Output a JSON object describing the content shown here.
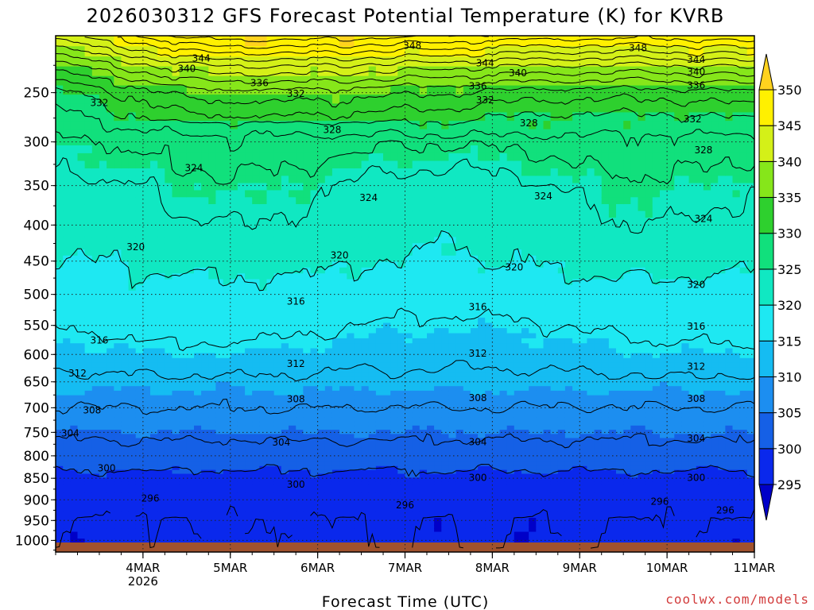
{
  "chart_data": {
    "type": "heatmap",
    "title": "2026030312 GFS Forecast Potential Temperature (K) for KVRB",
    "xlabel": "Forecast Time (UTC)",
    "ylabel": "",
    "credit": "coolwx.com/models",
    "x_ticks": [
      {
        "label": "4MAR",
        "sub": "2026",
        "hours": 12
      },
      {
        "label": "5MAR",
        "sub": "",
        "hours": 36
      },
      {
        "label": "6MAR",
        "sub": "",
        "hours": 60
      },
      {
        "label": "7MAR",
        "sub": "",
        "hours": 84
      },
      {
        "label": "8MAR",
        "sub": "",
        "hours": 108
      },
      {
        "label": "9MAR",
        "sub": "",
        "hours": 132
      },
      {
        "label": "10MAR",
        "sub": "",
        "hours": 156
      },
      {
        "label": "11MAR",
        "sub": "",
        "hours": 180
      }
    ],
    "x_range_hours": [
      -12,
      180
    ],
    "y_ticks": [
      250,
      300,
      350,
      400,
      450,
      500,
      550,
      600,
      650,
      700,
      750,
      800,
      850,
      900,
      950,
      1000
    ],
    "y_range_hpa": [
      200,
      1030
    ],
    "colorbar": {
      "levels": [
        295,
        300,
        305,
        310,
        315,
        320,
        325,
        330,
        335,
        340,
        345,
        350
      ],
      "colors": [
        "#0000c8",
        "#0a28ec",
        "#1560e6",
        "#1c8ef0",
        "#15bcf2",
        "#1ee8f2",
        "#10e8c2",
        "#11e07c",
        "#2ed02e",
        "#86e61a",
        "#d4f018",
        "#fff000",
        "#ffd21e"
      ],
      "extend": "both"
    },
    "contour_levels": [
      296,
      300,
      304,
      308,
      312,
      316,
      320,
      324,
      328,
      332,
      336,
      340,
      344,
      348
    ],
    "contour_labels": [
      {
        "v": 348,
        "t": 86,
        "p": 208
      },
      {
        "v": 348,
        "t": 148,
        "p": 210
      },
      {
        "v": 344,
        "t": 28,
        "p": 219
      },
      {
        "v": 344,
        "t": 106,
        "p": 223
      },
      {
        "v": 344,
        "t": 164,
        "p": 220
      },
      {
        "v": 340,
        "t": 24,
        "p": 228
      },
      {
        "v": 340,
        "t": 115,
        "p": 232
      },
      {
        "v": 340,
        "t": 164,
        "p": 231
      },
      {
        "v": 336,
        "t": 44,
        "p": 241
      },
      {
        "v": 336,
        "t": 104,
        "p": 244
      },
      {
        "v": 336,
        "t": 164,
        "p": 243
      },
      {
        "v": 332,
        "t": 0,
        "p": 260
      },
      {
        "v": 332,
        "t": 54,
        "p": 251
      },
      {
        "v": 332,
        "t": 106,
        "p": 257
      },
      {
        "v": 332,
        "t": 163,
        "p": 276
      },
      {
        "v": 328,
        "t": 64,
        "p": 287
      },
      {
        "v": 328,
        "t": 118,
        "p": 280
      },
      {
        "v": 328,
        "t": 166,
        "p": 309
      },
      {
        "v": 324,
        "t": 26,
        "p": 329
      },
      {
        "v": 324,
        "t": 74,
        "p": 365
      },
      {
        "v": 324,
        "t": 122,
        "p": 363
      },
      {
        "v": 324,
        "t": 166,
        "p": 392
      },
      {
        "v": 320,
        "t": 10,
        "p": 430
      },
      {
        "v": 320,
        "t": 66,
        "p": 442
      },
      {
        "v": 320,
        "t": 114,
        "p": 459
      },
      {
        "v": 320,
        "t": 164,
        "p": 485
      },
      {
        "v": 316,
        "t": 0,
        "p": 575
      },
      {
        "v": 316,
        "t": 54,
        "p": 511
      },
      {
        "v": 316,
        "t": 104,
        "p": 520
      },
      {
        "v": 316,
        "t": 164,
        "p": 552
      },
      {
        "v": 312,
        "t": -6,
        "p": 634
      },
      {
        "v": 312,
        "t": 54,
        "p": 617
      },
      {
        "v": 312,
        "t": 104,
        "p": 598
      },
      {
        "v": 312,
        "t": 164,
        "p": 622
      },
      {
        "v": 308,
        "t": -2,
        "p": 705
      },
      {
        "v": 308,
        "t": 54,
        "p": 683
      },
      {
        "v": 308,
        "t": 104,
        "p": 681
      },
      {
        "v": 308,
        "t": 164,
        "p": 682
      },
      {
        "v": 304,
        "t": -8,
        "p": 752
      },
      {
        "v": 304,
        "t": 50,
        "p": 771
      },
      {
        "v": 304,
        "t": 104,
        "p": 770
      },
      {
        "v": 304,
        "t": 164,
        "p": 763
      },
      {
        "v": 300,
        "t": 2,
        "p": 827
      },
      {
        "v": 300,
        "t": 54,
        "p": 864
      },
      {
        "v": 300,
        "t": 104,
        "p": 849
      },
      {
        "v": 300,
        "t": 164,
        "p": 849
      },
      {
        "v": 296,
        "t": 14,
        "p": 897
      },
      {
        "v": 296,
        "t": 84,
        "p": 913
      },
      {
        "v": 296,
        "t": 154,
        "p": 904
      },
      {
        "v": 296,
        "t": 172,
        "p": 925
      }
    ]
  }
}
